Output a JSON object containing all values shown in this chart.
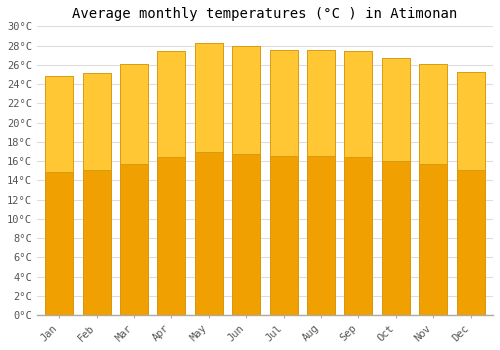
{
  "title": "Average monthly temperatures (°C ) in Atimonan",
  "months": [
    "Jan",
    "Feb",
    "Mar",
    "Apr",
    "May",
    "Jun",
    "Jul",
    "Aug",
    "Sep",
    "Oct",
    "Nov",
    "Dec"
  ],
  "values": [
    24.8,
    25.1,
    26.1,
    27.4,
    28.3,
    27.9,
    27.5,
    27.5,
    27.4,
    26.7,
    26.1,
    25.2
  ],
  "bar_color_top": "#FFC733",
  "bar_color_bottom": "#F0A000",
  "bar_edge_color": "#D4920A",
  "ylim": [
    0,
    30
  ],
  "ytick_step": 2,
  "background_color": "#ffffff",
  "plot_bg_color": "#ffffff",
  "grid_color": "#dddddd",
  "title_fontsize": 10,
  "tick_fontsize": 7.5,
  "font_family": "monospace"
}
